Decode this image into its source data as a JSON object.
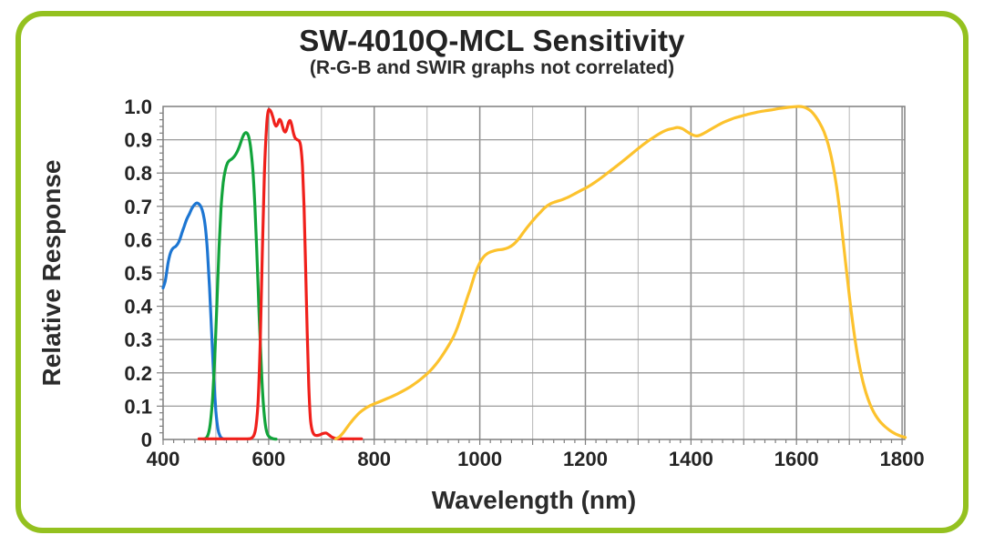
{
  "header": {
    "title": "SW-4010Q-MCL Sensitivity",
    "subtitle": "(R-G-B and SWIR graphs not correlated)"
  },
  "colors": {
    "card_border": "#94C11F",
    "plot_border": "#7F7F7F",
    "grid_major": "#8C8C8C",
    "grid_minor": "#BDBDBD",
    "grid_horizontal": "#9A9A9A",
    "text": "#242424"
  },
  "chart_data": {
    "type": "line",
    "title": "SW-4010Q-MCL Sensitivity",
    "subtitle": "(R-G-B and SWIR graphs not correlated)",
    "xlabel": "Wavelength (nm)",
    "ylabel": "Relative Response",
    "xlim": [
      400,
      1805
    ],
    "ylim": [
      0,
      1.0
    ],
    "grid": true,
    "legend": "none",
    "x_ticks": [
      {
        "v": 400,
        "label": "400"
      },
      {
        "v": 600,
        "label": "600"
      },
      {
        "v": 800,
        "label": "800"
      },
      {
        "v": 1000,
        "label": "1000"
      },
      {
        "v": 1200,
        "label": "1200"
      },
      {
        "v": 1400,
        "label": "1400"
      },
      {
        "v": 1600,
        "label": "1600"
      },
      {
        "v": 1800,
        "label": "1800"
      }
    ],
    "x_minor_grid_step": 100,
    "x_minor_tick_step": 20,
    "y_ticks": [
      {
        "v": 1.0,
        "label": "1.0"
      },
      {
        "v": 0.9,
        "label": "0.9"
      },
      {
        "v": 0.8,
        "label": "0.8"
      },
      {
        "v": 0.7,
        "label": "0.7"
      },
      {
        "v": 0.6,
        "label": "0.6"
      },
      {
        "v": 0.5,
        "label": "0.5"
      },
      {
        "v": 0.4,
        "label": "0.4"
      },
      {
        "v": 0.3,
        "label": "0.3"
      },
      {
        "v": 0.2,
        "label": "0.2"
      },
      {
        "v": 0.1,
        "label": "0.1"
      },
      {
        "v": 0,
        "label": "0"
      }
    ],
    "y_minor_tick_step": 0.02,
    "series": [
      {
        "name": "B",
        "color": "#1D76D2",
        "points": [
          [
            400,
            0.455
          ],
          [
            404,
            0.475
          ],
          [
            407,
            0.505
          ],
          [
            410,
            0.535
          ],
          [
            413,
            0.555
          ],
          [
            416,
            0.568
          ],
          [
            420,
            0.576
          ],
          [
            424,
            0.58
          ],
          [
            428,
            0.588
          ],
          [
            432,
            0.602
          ],
          [
            436,
            0.622
          ],
          [
            440,
            0.64
          ],
          [
            445,
            0.662
          ],
          [
            450,
            0.678
          ],
          [
            455,
            0.695
          ],
          [
            460,
            0.706
          ],
          [
            464,
            0.71
          ],
          [
            468,
            0.707
          ],
          [
            472,
            0.698
          ],
          [
            476,
            0.678
          ],
          [
            480,
            0.64
          ],
          [
            484,
            0.565
          ],
          [
            488,
            0.455
          ],
          [
            492,
            0.32
          ],
          [
            496,
            0.185
          ],
          [
            500,
            0.085
          ],
          [
            504,
            0.03
          ],
          [
            508,
            0.01
          ],
          [
            512,
            0.003
          ],
          [
            516,
            0.001
          ]
        ]
      },
      {
        "name": "G",
        "color": "#12A43B",
        "points": [
          [
            477,
            0.001
          ],
          [
            482,
            0.005
          ],
          [
            486,
            0.018
          ],
          [
            490,
            0.055
          ],
          [
            494,
            0.13
          ],
          [
            498,
            0.25
          ],
          [
            502,
            0.41
          ],
          [
            506,
            0.575
          ],
          [
            510,
            0.7
          ],
          [
            514,
            0.772
          ],
          [
            518,
            0.81
          ],
          [
            522,
            0.83
          ],
          [
            526,
            0.838
          ],
          [
            530,
            0.842
          ],
          [
            535,
            0.85
          ],
          [
            540,
            0.863
          ],
          [
            545,
            0.882
          ],
          [
            550,
            0.905
          ],
          [
            554,
            0.918
          ],
          [
            558,
            0.921
          ],
          [
            562,
            0.91
          ],
          [
            566,
            0.875
          ],
          [
            570,
            0.81
          ],
          [
            574,
            0.7
          ],
          [
            578,
            0.545
          ],
          [
            582,
            0.375
          ],
          [
            586,
            0.22
          ],
          [
            590,
            0.105
          ],
          [
            594,
            0.042
          ],
          [
            598,
            0.015
          ],
          [
            603,
            0.006
          ],
          [
            609,
            0.002
          ],
          [
            614,
            0.001
          ]
        ]
      },
      {
        "name": "R",
        "color": "#F0201B",
        "points": [
          [
            468,
            0.002
          ],
          [
            500,
            0.002
          ],
          [
            535,
            0.002
          ],
          [
            560,
            0.002
          ],
          [
            566,
            0.003
          ],
          [
            572,
            0.012
          ],
          [
            576,
            0.04
          ],
          [
            580,
            0.115
          ],
          [
            584,
            0.29
          ],
          [
            588,
            0.56
          ],
          [
            592,
            0.8
          ],
          [
            596,
            0.94
          ],
          [
            599,
            0.985
          ],
          [
            602,
            0.99
          ],
          [
            605,
            0.982
          ],
          [
            608,
            0.968
          ],
          [
            611,
            0.95
          ],
          [
            614,
            0.941
          ],
          [
            617,
            0.947
          ],
          [
            620,
            0.96
          ],
          [
            623,
            0.957
          ],
          [
            626,
            0.942
          ],
          [
            629,
            0.927
          ],
          [
            632,
            0.924
          ],
          [
            635,
            0.936
          ],
          [
            638,
            0.953
          ],
          [
            641,
            0.957
          ],
          [
            644,
            0.942
          ],
          [
            647,
            0.92
          ],
          [
            650,
            0.906
          ],
          [
            654,
            0.9
          ],
          [
            658,
            0.896
          ],
          [
            661,
            0.878
          ],
          [
            664,
            0.82
          ],
          [
            667,
            0.7
          ],
          [
            670,
            0.52
          ],
          [
            673,
            0.32
          ],
          [
            676,
            0.16
          ],
          [
            679,
            0.065
          ],
          [
            682,
            0.03
          ],
          [
            686,
            0.015
          ],
          [
            691,
            0.012
          ],
          [
            697,
            0.014
          ],
          [
            703,
            0.018
          ],
          [
            709,
            0.019
          ],
          [
            714,
            0.014
          ],
          [
            719,
            0.008
          ],
          [
            725,
            0.004
          ],
          [
            732,
            0.002
          ],
          [
            745,
            0.002
          ],
          [
            760,
            0.002
          ],
          [
            776,
            0.002
          ]
        ]
      },
      {
        "name": "SWIR",
        "color": "#FCC22D",
        "points": [
          [
            727,
            0.002
          ],
          [
            734,
            0.008
          ],
          [
            741,
            0.02
          ],
          [
            748,
            0.035
          ],
          [
            756,
            0.052
          ],
          [
            764,
            0.067
          ],
          [
            772,
            0.08
          ],
          [
            780,
            0.09
          ],
          [
            788,
            0.098
          ],
          [
            797,
            0.105
          ],
          [
            808,
            0.112
          ],
          [
            820,
            0.12
          ],
          [
            832,
            0.128
          ],
          [
            844,
            0.137
          ],
          [
            856,
            0.147
          ],
          [
            868,
            0.158
          ],
          [
            880,
            0.171
          ],
          [
            892,
            0.186
          ],
          [
            904,
            0.203
          ],
          [
            916,
            0.224
          ],
          [
            928,
            0.25
          ],
          [
            940,
            0.28
          ],
          [
            950,
            0.308
          ],
          [
            958,
            0.338
          ],
          [
            966,
            0.375
          ],
          [
            974,
            0.415
          ],
          [
            982,
            0.452
          ],
          [
            990,
            0.493
          ],
          [
            998,
            0.524
          ],
          [
            1006,
            0.546
          ],
          [
            1014,
            0.558
          ],
          [
            1024,
            0.565
          ],
          [
            1034,
            0.569
          ],
          [
            1044,
            0.571
          ],
          [
            1054,
            0.576
          ],
          [
            1064,
            0.586
          ],
          [
            1074,
            0.603
          ],
          [
            1084,
            0.625
          ],
          [
            1094,
            0.645
          ],
          [
            1104,
            0.664
          ],
          [
            1114,
            0.681
          ],
          [
            1124,
            0.697
          ],
          [
            1134,
            0.708
          ],
          [
            1144,
            0.714
          ],
          [
            1156,
            0.72
          ],
          [
            1168,
            0.728
          ],
          [
            1180,
            0.738
          ],
          [
            1192,
            0.748
          ],
          [
            1204,
            0.758
          ],
          [
            1218,
            0.772
          ],
          [
            1232,
            0.788
          ],
          [
            1246,
            0.805
          ],
          [
            1260,
            0.822
          ],
          [
            1274,
            0.84
          ],
          [
            1288,
            0.858
          ],
          [
            1302,
            0.876
          ],
          [
            1316,
            0.893
          ],
          [
            1330,
            0.908
          ],
          [
            1342,
            0.92
          ],
          [
            1354,
            0.929
          ],
          [
            1366,
            0.934
          ],
          [
            1375,
            0.937
          ],
          [
            1384,
            0.933
          ],
          [
            1392,
            0.925
          ],
          [
            1400,
            0.917
          ],
          [
            1408,
            0.912
          ],
          [
            1416,
            0.913
          ],
          [
            1424,
            0.919
          ],
          [
            1436,
            0.93
          ],
          [
            1448,
            0.941
          ],
          [
            1460,
            0.951
          ],
          [
            1472,
            0.959
          ],
          [
            1484,
            0.966
          ],
          [
            1498,
            0.972
          ],
          [
            1512,
            0.978
          ],
          [
            1526,
            0.983
          ],
          [
            1540,
            0.987
          ],
          [
            1554,
            0.99
          ],
          [
            1568,
            0.994
          ],
          [
            1582,
            0.997
          ],
          [
            1594,
            0.999
          ],
          [
            1604,
            1.0
          ],
          [
            1612,
            0.999
          ],
          [
            1620,
            0.994
          ],
          [
            1628,
            0.985
          ],
          [
            1636,
            0.97
          ],
          [
            1644,
            0.95
          ],
          [
            1652,
            0.924
          ],
          [
            1660,
            0.886
          ],
          [
            1668,
            0.832
          ],
          [
            1676,
            0.757
          ],
          [
            1684,
            0.658
          ],
          [
            1692,
            0.545
          ],
          [
            1700,
            0.432
          ],
          [
            1708,
            0.332
          ],
          [
            1716,
            0.249
          ],
          [
            1724,
            0.185
          ],
          [
            1732,
            0.138
          ],
          [
            1740,
            0.103
          ],
          [
            1748,
            0.077
          ],
          [
            1757,
            0.056
          ],
          [
            1766,
            0.041
          ],
          [
            1776,
            0.028
          ],
          [
            1786,
            0.018
          ],
          [
            1796,
            0.011
          ],
          [
            1806,
            0.006
          ]
        ]
      }
    ]
  }
}
